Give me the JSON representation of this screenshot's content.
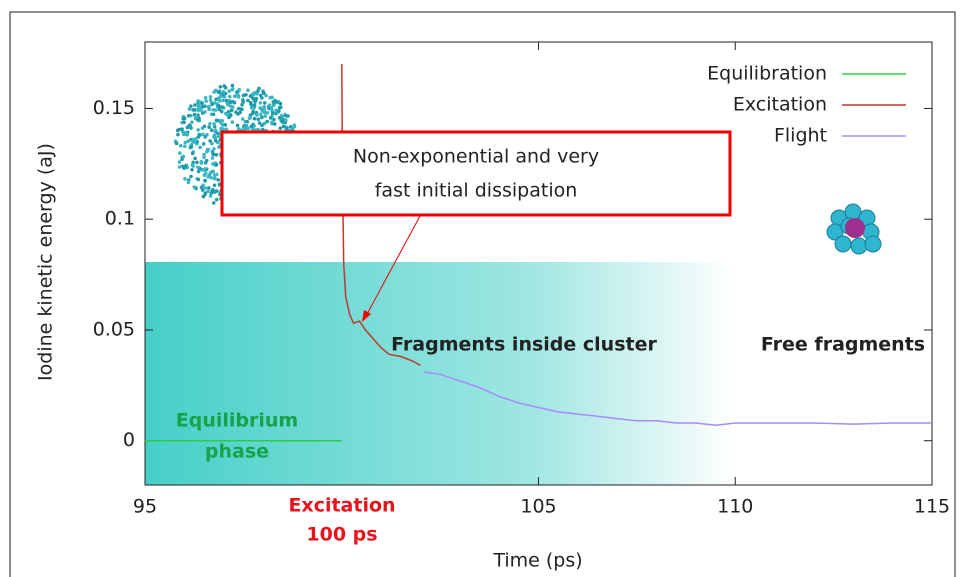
{
  "chart_data": {
    "type": "line",
    "x_label": "Time (ps)",
    "y_label": "Iodine kinetic energy (aJ)",
    "xlim": [
      95,
      115
    ],
    "ylim": [
      -0.02,
      0.18
    ],
    "xticks": [
      95,
      105,
      110,
      115
    ],
    "yticks": [
      0,
      0.05,
      0.1,
      0.15
    ],
    "legend": "top-right",
    "series": [
      {
        "name": "Equilibration",
        "color": "#2ecc40",
        "x": [
          95,
          100
        ],
        "values": [
          0,
          0
        ]
      },
      {
        "name": "Excitation",
        "color": "#c0392b",
        "x": [
          100,
          100.02,
          100.05,
          100.1,
          100.2,
          100.3,
          100.45,
          100.6,
          100.8,
          101,
          101.2,
          101.5,
          101.8,
          102
        ],
        "values": [
          0.17,
          0.12,
          0.08,
          0.065,
          0.057,
          0.053,
          0.054,
          0.05,
          0.046,
          0.042,
          0.039,
          0.038,
          0.036,
          0.034
        ]
      },
      {
        "name": "Flight",
        "color": "#a78bfa",
        "x": [
          102.1,
          102.5,
          103,
          103.5,
          104,
          104.5,
          105,
          105.5,
          106,
          106.5,
          107,
          107.5,
          108,
          108.5,
          109,
          109.5,
          110,
          111,
          112,
          113,
          114,
          115
        ],
        "values": [
          0.031,
          0.03,
          0.027,
          0.024,
          0.02,
          0.017,
          0.015,
          0.013,
          0.012,
          0.011,
          0.01,
          0.009,
          0.009,
          0.008,
          0.008,
          0.007,
          0.008,
          0.008,
          0.008,
          0.0075,
          0.008,
          0.008
        ]
      }
    ],
    "callout": [
      "Non-exponential and very",
      "fast initial dissipation"
    ],
    "excitation_label": [
      "Excitation",
      "100 ps"
    ],
    "equilibrium_label": [
      "Equilibrium",
      "phase"
    ],
    "inside_label": "Fragments inside cluster",
    "free_label": "Free fragments"
  }
}
